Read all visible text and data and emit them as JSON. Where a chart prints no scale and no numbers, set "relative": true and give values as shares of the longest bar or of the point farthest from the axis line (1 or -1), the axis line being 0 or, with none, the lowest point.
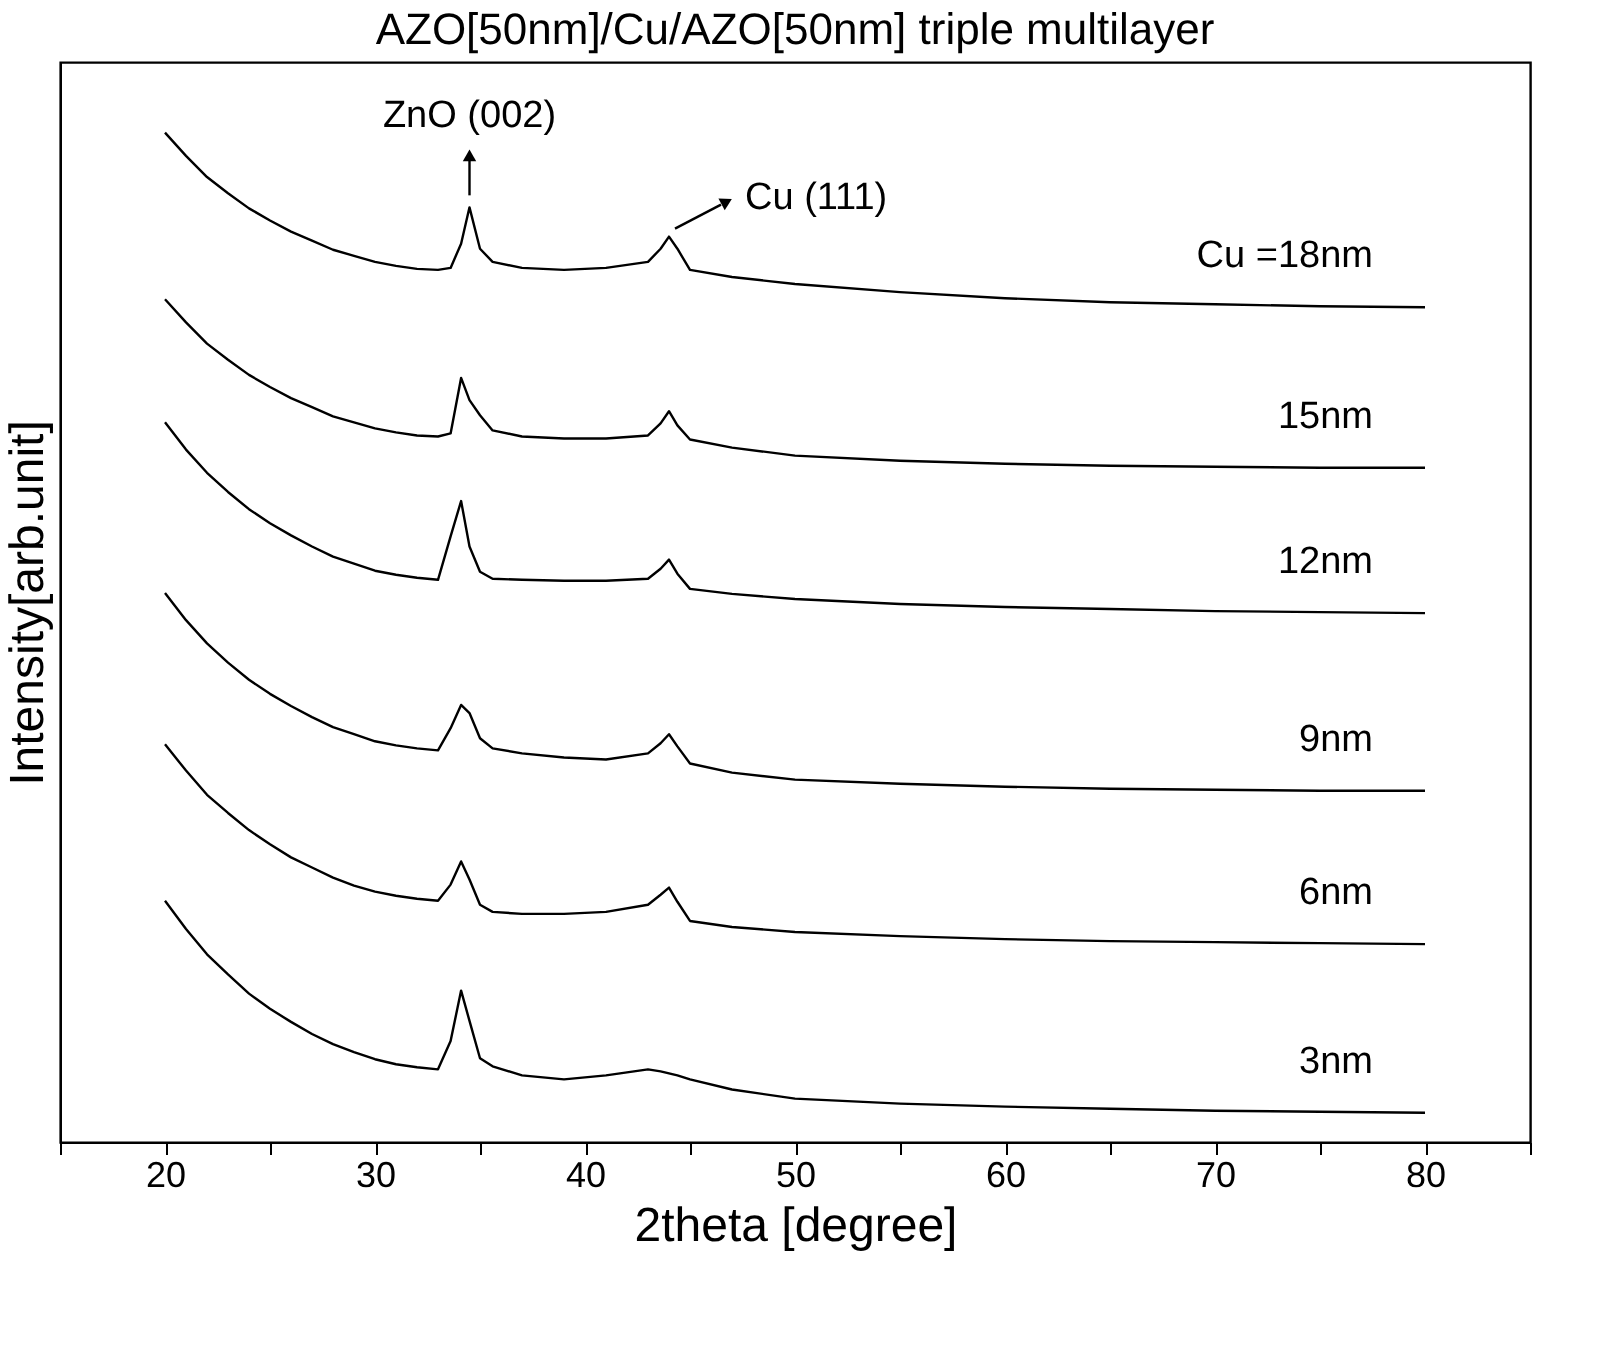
{
  "chart_data": {
    "type": "line",
    "title": "AZO[50nm]/Cu/AZO[50nm] triple multilayer",
    "xlabel": "2theta [degree]",
    "ylabel": "Intensity[arb.unit]",
    "relative": true,
    "legend": false,
    "grid": false,
    "xlim": [
      15,
      85
    ],
    "xticks": [
      {
        "value": 15,
        "label": null
      },
      20,
      {
        "value": 25,
        "label": null
      },
      30,
      {
        "value": 35,
        "label": null
      },
      40,
      {
        "value": 45,
        "label": null
      },
      50,
      {
        "value": 55,
        "label": null
      },
      60,
      {
        "value": 65,
        "label": null
      },
      70,
      {
        "value": 75,
        "label": null
      },
      80,
      {
        "value": 85,
        "label": null
      }
    ],
    "x": [
      20,
      21,
      22,
      23,
      24,
      25,
      26,
      27,
      28,
      29,
      30,
      31,
      32,
      33,
      33.6,
      34.1,
      34.5,
      35,
      35.6,
      37,
      39,
      41,
      43,
      43.6,
      44,
      44.4,
      45,
      47,
      50,
      55,
      60,
      65,
      70,
      75,
      80
    ],
    "series": [
      {
        "name": "Cu =18nm",
        "color": "#000000",
        "values": [
          1,
          0.977,
          0.956,
          0.94,
          0.925,
          0.913,
          0.902,
          0.893,
          0.884,
          0.878,
          0.872,
          0.868,
          0.865,
          0.864,
          0.866,
          0.89,
          0.926,
          0.885,
          0.872,
          0.866,
          0.864,
          0.866,
          0.872,
          0.885,
          0.897,
          0.885,
          0.864,
          0.857,
          0.85,
          0.842,
          0.836,
          0.832,
          0.83,
          0.828,
          0.827
        ]
      },
      {
        "name": "15nm",
        "color": "#000000",
        "values": [
          0.835,
          0.812,
          0.791,
          0.775,
          0.76,
          0.748,
          0.737,
          0.728,
          0.719,
          0.713,
          0.707,
          0.703,
          0.7,
          0.699,
          0.702,
          0.757,
          0.735,
          0.72,
          0.705,
          0.699,
          0.697,
          0.697,
          0.7,
          0.712,
          0.724,
          0.71,
          0.696,
          0.688,
          0.68,
          0.675,
          0.672,
          0.67,
          0.669,
          0.668,
          0.668
        ]
      },
      {
        "name": "12nm",
        "color": "#000000",
        "values": [
          0.713,
          0.686,
          0.663,
          0.644,
          0.627,
          0.613,
          0.601,
          0.59,
          0.58,
          0.573,
          0.566,
          0.562,
          0.559,
          0.557,
          0.6,
          0.635,
          0.59,
          0.565,
          0.558,
          0.557,
          0.556,
          0.556,
          0.558,
          0.568,
          0.577,
          0.563,
          0.548,
          0.543,
          0.538,
          0.533,
          0.53,
          0.528,
          0.526,
          0.525,
          0.524
        ]
      },
      {
        "name": "9nm",
        "color": "#000000",
        "values": [
          0.544,
          0.517,
          0.494,
          0.475,
          0.458,
          0.444,
          0.432,
          0.421,
          0.411,
          0.404,
          0.397,
          0.393,
          0.39,
          0.388,
          0.41,
          0.433,
          0.425,
          0.4,
          0.39,
          0.385,
          0.381,
          0.379,
          0.385,
          0.395,
          0.404,
          0.392,
          0.375,
          0.366,
          0.359,
          0.355,
          0.352,
          0.35,
          0.349,
          0.348,
          0.348
        ]
      },
      {
        "name": "6nm",
        "color": "#000000",
        "values": [
          0.394,
          0.368,
          0.344,
          0.326,
          0.309,
          0.295,
          0.282,
          0.272,
          0.262,
          0.254,
          0.248,
          0.244,
          0.241,
          0.239,
          0.255,
          0.278,
          0.26,
          0.235,
          0.228,
          0.226,
          0.226,
          0.228,
          0.235,
          0.245,
          0.252,
          0.238,
          0.219,
          0.213,
          0.208,
          0.204,
          0.201,
          0.199,
          0.198,
          0.197,
          0.196
        ]
      },
      {
        "name": "3nm",
        "color": "#000000",
        "values": [
          0.239,
          0.211,
          0.186,
          0.166,
          0.147,
          0.132,
          0.119,
          0.107,
          0.097,
          0.089,
          0.082,
          0.077,
          0.074,
          0.072,
          0.1,
          0.15,
          0.12,
          0.083,
          0.075,
          0.066,
          0.062,
          0.066,
          0.072,
          0.07,
          0.068,
          0.066,
          0.062,
          0.052,
          0.043,
          0.038,
          0.035,
          0.033,
          0.031,
          0.03,
          0.029
        ]
      }
    ],
    "annotations": [
      {
        "text": "ZnO (002)",
        "x": 34.5,
        "y": 0.926
      },
      {
        "text": "Cu (111)",
        "x": 44,
        "y": 0.897
      }
    ]
  }
}
